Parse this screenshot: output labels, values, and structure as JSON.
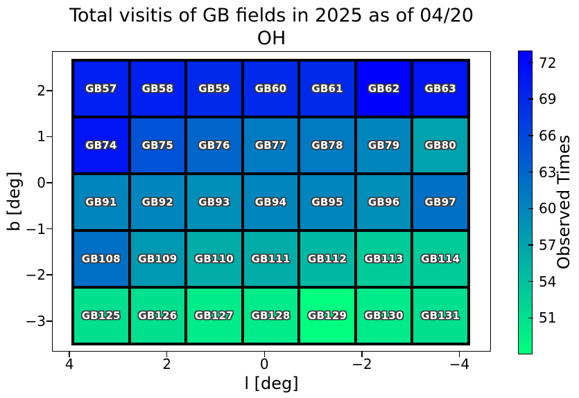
{
  "title_lines": [
    "Total visitis of GB fields in 2025 as of 04/20",
    "OH"
  ],
  "chart_data": {
    "type": "heatmap",
    "title": "Total visitis of GB fields in 2025 as of 04/20 OH",
    "xlabel": "l [deg]",
    "ylabel": "b [deg]",
    "colorbar_label": "Observed Times",
    "x_ticks": [
      4,
      2,
      0,
      -2,
      -4
    ],
    "y_ticks": [
      2,
      1,
      0,
      -1,
      -2,
      -3
    ],
    "x_axis_inverted": true,
    "x_extent_deg": [
      4.1,
      -4.3
    ],
    "y_extent_deg": [
      2.7,
      -3.4
    ],
    "colorbar_ticks": [
      72,
      69,
      66,
      63,
      60,
      57,
      54,
      51
    ],
    "vmin": 48,
    "vmax": 73,
    "colormap": {
      "name": "winter (blue = high, spring-green = low)",
      "high_color": "#0000ff",
      "low_color": "#00ff80"
    },
    "rows": [
      {
        "b_center_deg": 2.1,
        "cells": [
          {
            "label": "GB57",
            "value": 70
          },
          {
            "label": "GB58",
            "value": 70
          },
          {
            "label": "GB59",
            "value": 69
          },
          {
            "label": "GB60",
            "value": 69
          },
          {
            "label": "GB61",
            "value": 69
          },
          {
            "label": "GB62",
            "value": 73
          },
          {
            "label": "GB63",
            "value": 71
          }
        ]
      },
      {
        "b_center_deg": 0.8,
        "cells": [
          {
            "label": "GB74",
            "value": 71
          },
          {
            "label": "GB75",
            "value": 65
          },
          {
            "label": "GB76",
            "value": 63
          },
          {
            "label": "GB77",
            "value": 61
          },
          {
            "label": "GB78",
            "value": 61
          },
          {
            "label": "GB79",
            "value": 60
          },
          {
            "label": "GB80",
            "value": 57
          }
        ]
      },
      {
        "b_center_deg": -0.4,
        "cells": [
          {
            "label": "GB91",
            "value": 60
          },
          {
            "label": "GB92",
            "value": 60
          },
          {
            "label": "GB93",
            "value": 59
          },
          {
            "label": "GB94",
            "value": 60
          },
          {
            "label": "GB95",
            "value": 60
          },
          {
            "label": "GB96",
            "value": 59
          },
          {
            "label": "GB97",
            "value": 62
          }
        ]
      },
      {
        "b_center_deg": -1.6,
        "cells": [
          {
            "label": "GB108",
            "value": 62
          },
          {
            "label": "GB109",
            "value": 58
          },
          {
            "label": "GB110",
            "value": 56
          },
          {
            "label": "GB111",
            "value": 56
          },
          {
            "label": "GB112",
            "value": 55
          },
          {
            "label": "GB113",
            "value": 53
          },
          {
            "label": "GB114",
            "value": 53
          }
        ]
      },
      {
        "b_center_deg": -2.9,
        "cells": [
          {
            "label": "GB125",
            "value": 51
          },
          {
            "label": "GB126",
            "value": 51
          },
          {
            "label": "GB127",
            "value": 50
          },
          {
            "label": "GB128",
            "value": 50
          },
          {
            "label": "GB129",
            "value": 48
          },
          {
            "label": "GB130",
            "value": 50
          },
          {
            "label": "GB131",
            "value": 51
          }
        ]
      }
    ]
  }
}
